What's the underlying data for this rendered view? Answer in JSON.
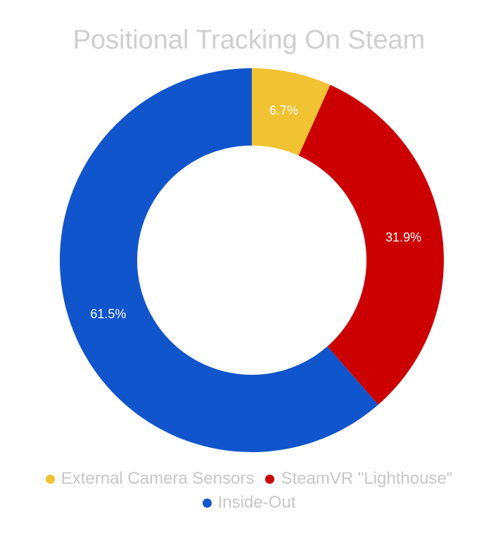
{
  "chart_data": {
    "type": "pie",
    "variant": "donut",
    "title": "Positional Tracking On Steam",
    "slices": [
      {
        "label": "External Camera Sensors",
        "value": 6.7,
        "display": "6.7%",
        "color": "#f1c232"
      },
      {
        "label": "SteamVR \"Lighthouse\"",
        "value": 31.9,
        "display": "31.9%",
        "color": "#cc0000"
      },
      {
        "label": "Inside-Out",
        "value": 61.5,
        "display": "61.5%",
        "color": "#1155cc"
      }
    ],
    "legend_position": "bottom"
  }
}
